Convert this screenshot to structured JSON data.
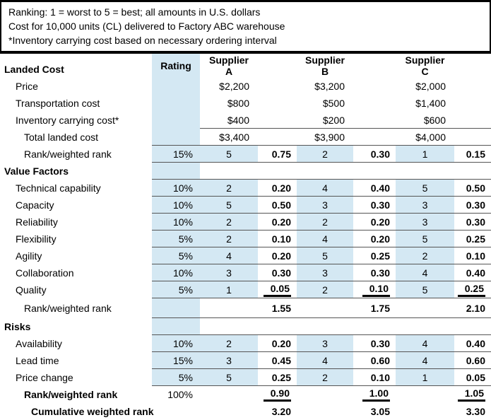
{
  "notes": [
    "Ranking: 1 = worst to 5 = best; all amounts in U.S. dollars",
    "Cost for 10,000 units (CL) delivered to Factory ABC warehouse",
    "*Inventory carrying cost based on necessary ordering interval"
  ],
  "table": {
    "landed_cost_label": "Landed Cost",
    "rating_label": "Rating",
    "suppliers": [
      {
        "line1": "Supplier",
        "line2": "A"
      },
      {
        "line1": "Supplier",
        "line2": "B"
      },
      {
        "line1": "Supplier",
        "line2": "C"
      }
    ],
    "rows": [
      {
        "name": "row-price",
        "label": "Price",
        "indent": 1,
        "rating": "",
        "a": "$2,200",
        "b": "$3,200",
        "c": "$2,000",
        "money": true,
        "rating_blue": true,
        "sep": "none"
      },
      {
        "name": "row-transportation-cost",
        "label": "Transportation cost",
        "indent": 1,
        "rating": "",
        "a": "$800",
        "b": "$500",
        "c": "$1,400",
        "money": true,
        "rating_blue": true,
        "sep": "none"
      },
      {
        "name": "row-inventory-carrying-cost",
        "label": "Inventory carrying cost*",
        "indent": 1,
        "rating": "",
        "a": "$400",
        "b": "$200",
        "c": "$600",
        "money": true,
        "rating_blue": true,
        "sep": "group"
      },
      {
        "name": "row-total-landed-cost",
        "label": "Total landed cost",
        "indent": 2,
        "rating": "",
        "a": "$3,400",
        "b": "$3,900",
        "c": "$4,000",
        "money": true,
        "rating_blue": true,
        "sep": "full"
      },
      {
        "name": "row-landed-rank",
        "label": "Rank/weighted rank",
        "indent": 2,
        "rating": "15%",
        "a": "5",
        "aw": "0.75",
        "b": "2",
        "bw": "0.30",
        "c": "1",
        "cw": "0.15",
        "rank_blue": true,
        "rating_blue": true,
        "sep": "full"
      },
      {
        "name": "section-value-factors",
        "label": "Value Factors",
        "indent": 0,
        "bold": true,
        "rating": "",
        "rating_blue": true,
        "sep": "full"
      },
      {
        "name": "row-technical-capability",
        "label": "Technical capability",
        "indent": 1,
        "rating": "10%",
        "a": "2",
        "aw": "0.20",
        "b": "4",
        "bw": "0.40",
        "c": "5",
        "cw": "0.50",
        "rank_blue": true,
        "rating_blue": true,
        "sep": "full"
      },
      {
        "name": "row-capacity",
        "label": "Capacity",
        "indent": 1,
        "rating": "10%",
        "a": "5",
        "aw": "0.50",
        "b": "3",
        "bw": "0.30",
        "c": "3",
        "cw": "0.30",
        "rank_blue": true,
        "rating_blue": true,
        "sep": "full"
      },
      {
        "name": "row-reliability",
        "label": "Reliability",
        "indent": 1,
        "rating": "10%",
        "a": "2",
        "aw": "0.20",
        "b": "2",
        "bw": "0.20",
        "c": "3",
        "cw": "0.30",
        "rank_blue": true,
        "rating_blue": true,
        "sep": "full"
      },
      {
        "name": "row-flexibility",
        "label": "Flexibility",
        "indent": 1,
        "rating": "5%",
        "a": "2",
        "aw": "0.10",
        "b": "4",
        "bw": "0.20",
        "c": "5",
        "cw": "0.25",
        "rank_blue": true,
        "rating_blue": true,
        "sep": "full"
      },
      {
        "name": "row-agility",
        "label": "Agility",
        "indent": 1,
        "rating": "5%",
        "a": "4",
        "aw": "0.20",
        "b": "5",
        "bw": "0.25",
        "c": "2",
        "cw": "0.10",
        "rank_blue": true,
        "rating_blue": true,
        "sep": "full"
      },
      {
        "name": "row-collaboration",
        "label": "Collaboration",
        "indent": 1,
        "rating": "10%",
        "a": "3",
        "aw": "0.30",
        "b": "3",
        "bw": "0.30",
        "c": "4",
        "cw": "0.40",
        "rank_blue": true,
        "rating_blue": true,
        "sep": "full"
      },
      {
        "name": "row-quality",
        "label": "Quality",
        "indent": 1,
        "rating": "5%",
        "a": "1",
        "aw": "0.05",
        "b": "2",
        "bw": "0.10",
        "c": "5",
        "cw": "0.25",
        "rank_blue": true,
        "rating_blue": true,
        "sep": "full",
        "sumu": true
      },
      {
        "name": "row-value-rank",
        "label": "Rank/weighted rank",
        "indent": 2,
        "rating": "",
        "aw": "1.55",
        "bw": "1.75",
        "cw": "2.10",
        "rating_blue": true,
        "sep": "full",
        "h": 28
      },
      {
        "name": "section-risks",
        "label": "Risks",
        "indent": 0,
        "bold": true,
        "rating": "",
        "rating_blue": true,
        "sep": "full"
      },
      {
        "name": "row-availability",
        "label": "Availability",
        "indent": 1,
        "rating": "10%",
        "a": "2",
        "aw": "0.20",
        "b": "3",
        "bw": "0.30",
        "c": "4",
        "cw": "0.40",
        "rank_blue": true,
        "rating_blue": true,
        "sep": "full"
      },
      {
        "name": "row-lead-time",
        "label": "Lead time",
        "indent": 1,
        "rating": "15%",
        "a": "3",
        "aw": "0.45",
        "b": "4",
        "bw": "0.60",
        "c": "4",
        "cw": "0.60",
        "rank_blue": true,
        "rating_blue": true,
        "sep": "full"
      },
      {
        "name": "row-price-change",
        "label": "Price change",
        "indent": 1,
        "rating": "5%",
        "a": "5",
        "aw": "0.25",
        "b": "2",
        "bw": "0.10",
        "c": "1",
        "cw": "0.05",
        "rank_blue": true,
        "rating_blue": true,
        "sep": "full"
      },
      {
        "name": "row-risks-rank",
        "label": "Rank/weighted rank",
        "indent": 2,
        "bold": true,
        "rating": "100%",
        "aw": "0.90",
        "bw": "1.00",
        "cw": "1.05",
        "sep": "none",
        "sumu": true
      },
      {
        "name": "row-cumulative-rank",
        "label": "Cumulative weighted rank",
        "indent": 3,
        "bold": true,
        "rating": "",
        "aw": "3.20",
        "bw": "3.05",
        "cw": "3.30",
        "sep": "none"
      }
    ]
  },
  "colors": {
    "highlight_blue": "#d4e8f3",
    "separator_gray": "#555555",
    "band_gray": "#6f6f6f"
  }
}
